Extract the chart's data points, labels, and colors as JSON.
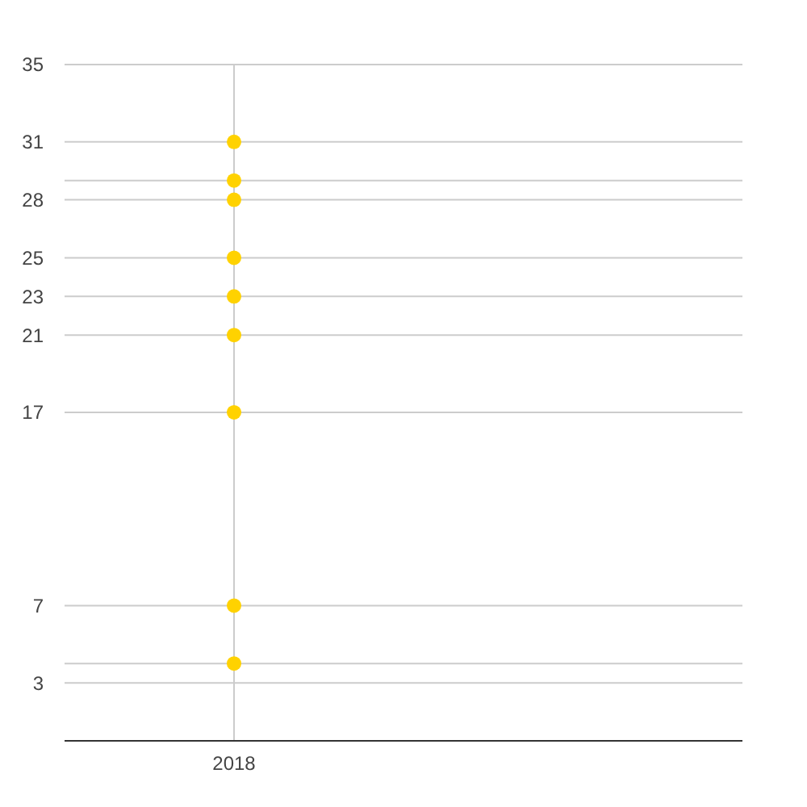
{
  "chart_data": {
    "type": "scatter",
    "categories": [
      "2018",
      null
    ],
    "series": [
      {
        "color": "#ffd200",
        "values": [
          31,
          null
        ]
      },
      {
        "color": "#ffd200",
        "values": [
          29,
          null
        ]
      },
      {
        "color": "#ffd200",
        "values": [
          28,
          null
        ]
      },
      {
        "color": "#ffd200",
        "values": [
          25,
          null
        ]
      },
      {
        "color": "#ffd200",
        "values": [
          23,
          null
        ]
      },
      {
        "color": "#ffd200",
        "values": [
          21,
          null
        ]
      },
      {
        "color": "#ffd200",
        "values": [
          17,
          null
        ]
      },
      {
        "color": "#ffd200",
        "values": [
          7,
          null
        ]
      },
      {
        "color": "#ffd200",
        "values": [
          4,
          null
        ]
      }
    ],
    "ylim": [
      0,
      35
    ],
    "yticks": [
      35,
      31,
      {
        "value": 29,
        "label": null
      },
      28,
      25,
      23,
      21,
      17,
      7,
      {
        "value": 4,
        "label": null
      },
      3
    ],
    "grid": true,
    "marker": "circle"
  }
}
